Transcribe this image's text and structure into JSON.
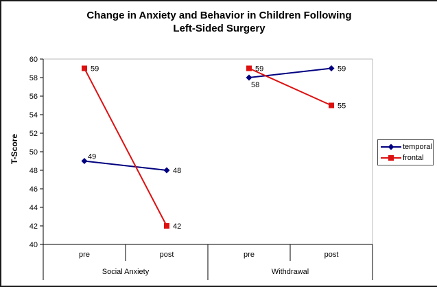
{
  "window": {
    "background": "#ffffff",
    "frame_border_color": "#000000"
  },
  "chart_data": {
    "type": "line",
    "title": "Change in Anxiety and Behavior in Children Following Left-Sided Surgery",
    "title_lines": [
      "Change in Anxiety and Behavior in Children Following",
      "Left-Sided Surgery"
    ],
    "xlabel": "",
    "ylabel": "T-Score",
    "ylim": [
      40,
      60
    ],
    "ytick_step": 2,
    "ytick_labels": [
      "40",
      "42",
      "44",
      "46",
      "48",
      "50",
      "52",
      "54",
      "56",
      "58",
      "60"
    ],
    "categories": [
      "pre",
      "post",
      "pre",
      "post"
    ],
    "category_groups": [
      {
        "label": "Social Anxiety",
        "span": [
          0,
          1
        ]
      },
      {
        "label": "Withdrawal",
        "span": [
          2,
          3
        ]
      }
    ],
    "line_segments": [
      [
        0,
        1
      ],
      [
        2,
        3
      ]
    ],
    "series": [
      {
        "name": "temporal",
        "color": "#000080",
        "marker": "diamond",
        "values": [
          49,
          48,
          58,
          59
        ],
        "data_labels": [
          "49",
          "48",
          "58",
          "59"
        ],
        "label_placement": [
          "above-right",
          "right",
          "below-right",
          "right"
        ]
      },
      {
        "name": "frontal",
        "color": "#dd1111",
        "marker": "square",
        "values": [
          59,
          42,
          59,
          55
        ],
        "data_labels": [
          "59",
          "42",
          "59",
          "55"
        ],
        "label_placement": [
          "right",
          "right",
          "right",
          "right"
        ]
      }
    ],
    "legend": {
      "position": "right",
      "entries": [
        "temporal",
        "frontal"
      ],
      "border": true
    },
    "grid": "top-border-only",
    "plot_border_color": "#b8b8b8",
    "axis_color": "#000000",
    "text_color": "#000000"
  }
}
